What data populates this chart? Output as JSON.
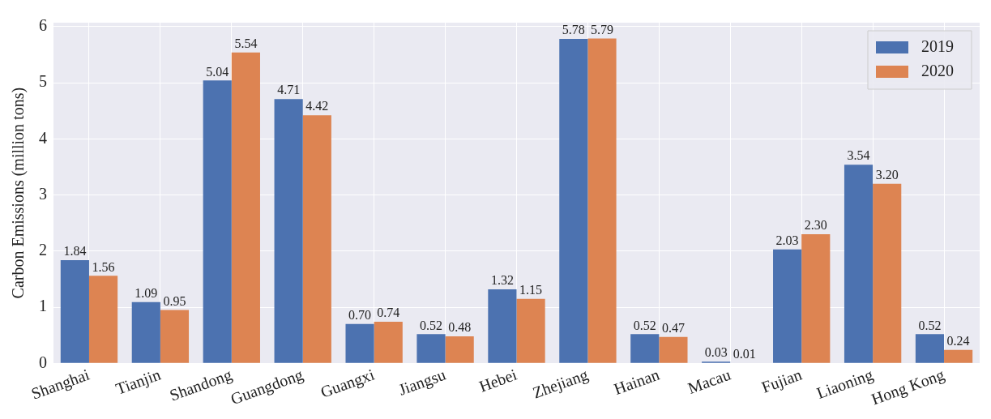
{
  "chart_data": {
    "type": "bar",
    "ylabel": "Carbon Emissions (million tons)",
    "categories": [
      "Shanghai",
      "Tianjin",
      "Shandong",
      "Guangdong",
      "Guangxi",
      "Jiangsu",
      "Hebei",
      "Zhejiang",
      "Hainan",
      "Macau",
      "Fujian",
      "Liaoning",
      "Hong Kong"
    ],
    "series": [
      {
        "name": "2019",
        "color": "#4c72b0",
        "values": [
          1.84,
          1.09,
          5.04,
          4.71,
          0.7,
          0.52,
          1.32,
          5.78,
          0.52,
          0.03,
          2.03,
          3.54,
          0.52
        ],
        "value_labels": [
          "1.84",
          "1.09",
          "5.04",
          "4.71",
          "0.70",
          "0.52",
          "1.32",
          "5.78",
          "0.52",
          "0.03",
          "2.03",
          "3.54",
          "0.52"
        ]
      },
      {
        "name": "2020",
        "color": "#dd8452",
        "values": [
          1.56,
          0.95,
          5.54,
          4.42,
          0.74,
          0.48,
          1.15,
          5.79,
          0.47,
          0.01,
          2.3,
          3.2,
          0.24
        ],
        "value_labels": [
          "1.56",
          "0.95",
          "5.54",
          "4.42",
          "0.74",
          "0.48",
          "1.15",
          "5.79",
          "0.47",
          "0.01",
          "2.30",
          "3.20",
          "0.24"
        ]
      }
    ],
    "ylim": [
      0,
      6.07
    ],
    "yticks": [
      0,
      1,
      2,
      3,
      4,
      5,
      6
    ],
    "grid": true,
    "legend": "top right"
  }
}
